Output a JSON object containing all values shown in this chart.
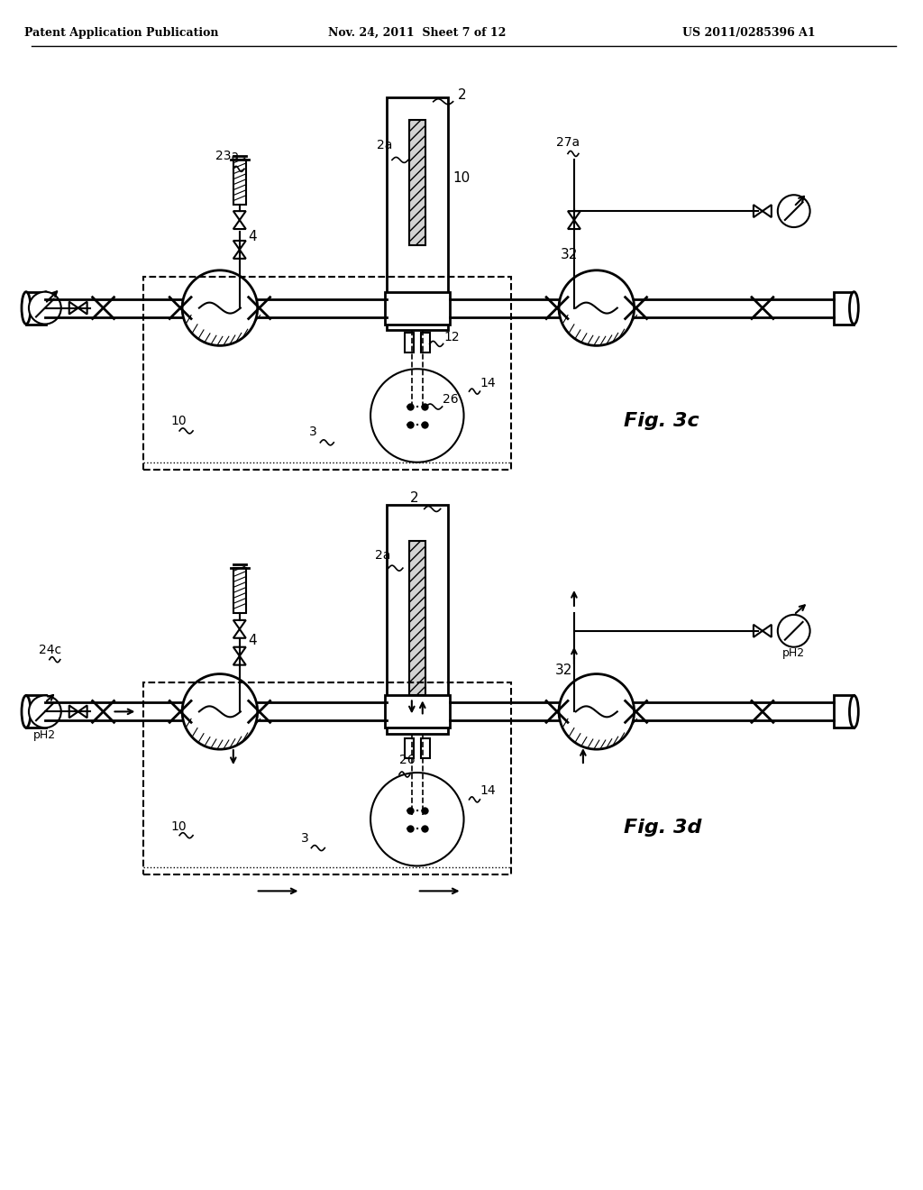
{
  "title_left": "Patent Application Publication",
  "title_mid": "Nov. 24, 2011  Sheet 7 of 12",
  "title_right": "US 2011/0285396 A1",
  "fig3c_label": "Fig. 3c",
  "fig3d_label": "Fig. 3d",
  "bg_color": "#ffffff",
  "line_color": "#000000"
}
